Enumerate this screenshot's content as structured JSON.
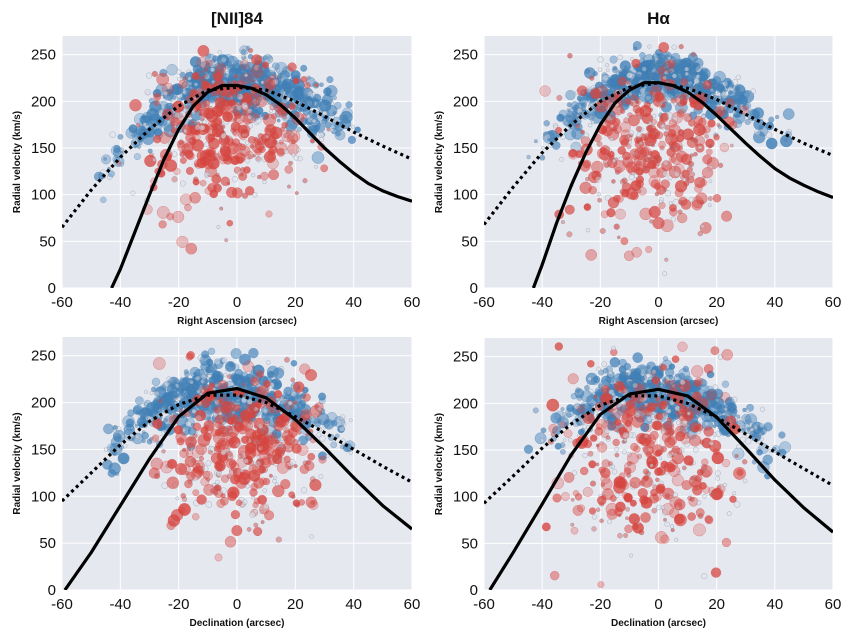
{
  "figure": {
    "background": "#ffffff",
    "plot_background": "#e6e8f0",
    "grid_color": "#ffffff",
    "curve_color": "#000000",
    "blue_color": "#3f7fb6",
    "red_color": "#d6453f"
  },
  "chart_data": [
    {
      "type": "scatter",
      "title": "[NII]84",
      "xlabel": "Right Ascension (arcsec)",
      "ylabel": "Radial velocity (km/s)",
      "xlim": [
        -60,
        60
      ],
      "ylim": [
        0,
        270
      ],
      "xticks": [
        "-60",
        "-40",
        "-20",
        "0",
        "20",
        "40",
        "60"
      ],
      "yticks": [
        "0",
        "50",
        "100",
        "150",
        "200",
        "250"
      ],
      "grid": true,
      "curves": {
        "solid": {
          "x": [
            -43,
            -40,
            -35,
            -30,
            -25,
            -20,
            -15,
            -10,
            -5,
            0,
            5,
            10,
            15,
            20,
            25,
            30,
            35,
            40,
            45,
            50,
            55,
            60
          ],
          "y": [
            0,
            20,
            60,
            100,
            138,
            170,
            195,
            210,
            217,
            217,
            214,
            207,
            196,
            182,
            166,
            150,
            136,
            123,
            112,
            104,
            98,
            93
          ]
        },
        "dotted": {
          "x": [
            -60,
            -50,
            -40,
            -30,
            -20,
            -10,
            0,
            10,
            20,
            30,
            40,
            50,
            60
          ],
          "y": [
            65,
            105,
            140,
            170,
            195,
            212,
            215,
            212,
            200,
            184,
            167,
            152,
            138
          ]
        }
      },
      "point_clouds": {
        "blue": {
          "x_range": [
            -48,
            42
          ],
          "center_x": 0,
          "center_y": 200,
          "spread_x": 20,
          "spread_y": 28
        },
        "red": {
          "x_range": [
            -42,
            35
          ],
          "center_x": -3,
          "center_y": 165,
          "spread_x": 14,
          "spread_y": 40
        }
      }
    },
    {
      "type": "scatter",
      "title": "Hα",
      "xlabel": "Right Ascension (arcsec)",
      "ylabel": "Radial velocity (km/s)",
      "xlim": [
        -60,
        60
      ],
      "ylim": [
        0,
        270
      ],
      "xticks": [
        "-60",
        "-40",
        "-20",
        "0",
        "20",
        "40",
        "60"
      ],
      "yticks": [
        "0",
        "50",
        "100",
        "150",
        "200",
        "250"
      ],
      "grid": true,
      "curves": {
        "solid": {
          "x": [
            -43,
            -40,
            -35,
            -30,
            -25,
            -20,
            -15,
            -10,
            -5,
            0,
            5,
            10,
            15,
            20,
            25,
            30,
            35,
            40,
            45,
            50,
            55,
            60
          ],
          "y": [
            0,
            25,
            70,
            110,
            145,
            175,
            198,
            212,
            220,
            220,
            217,
            210,
            199,
            185,
            170,
            155,
            141,
            128,
            118,
            110,
            103,
            97
          ]
        },
        "dotted": {
          "x": [
            -60,
            -50,
            -40,
            -30,
            -20,
            -10,
            0,
            10,
            20,
            30,
            40,
            50,
            60
          ],
          "y": [
            68,
            108,
            145,
            175,
            200,
            215,
            220,
            214,
            202,
            186,
            170,
            155,
            142
          ]
        }
      },
      "point_clouds": {
        "blue": {
          "x_range": [
            -45,
            45
          ],
          "center_x": 0,
          "center_y": 205,
          "spread_x": 18,
          "spread_y": 25
        },
        "red": {
          "x_range": [
            -40,
            35
          ],
          "center_x": -2,
          "center_y": 155,
          "spread_x": 14,
          "spread_y": 45
        }
      }
    },
    {
      "type": "scatter",
      "title": "",
      "xlabel": "Declination (arcsec)",
      "ylabel": "Radial velocity (km/s)",
      "xlim": [
        -60,
        60
      ],
      "ylim": [
        0,
        270
      ],
      "xticks": [
        "-60",
        "-40",
        "-20",
        "0",
        "20",
        "40",
        "60"
      ],
      "yticks": [
        "0",
        "50",
        "100",
        "150",
        "200",
        "250"
      ],
      "grid": true,
      "curves": {
        "solid": {
          "x": [
            -59,
            -50,
            -40,
            -30,
            -20,
            -10,
            0,
            10,
            20,
            30,
            40,
            50,
            60
          ],
          "y": [
            0,
            40,
            90,
            140,
            185,
            210,
            215,
            205,
            182,
            152,
            120,
            90,
            65
          ]
        },
        "dotted": {
          "x": [
            -60,
            -50,
            -40,
            -30,
            -20,
            -10,
            0,
            10,
            20,
            30,
            40,
            50,
            60
          ],
          "y": [
            95,
            125,
            155,
            180,
            198,
            208,
            208,
            200,
            185,
            168,
            150,
            132,
            115
          ]
        }
      },
      "point_clouds": {
        "blue": {
          "x_range": [
            -45,
            40
          ],
          "center_x": -5,
          "center_y": 200,
          "spread_x": 20,
          "spread_y": 28
        },
        "red": {
          "x_range": [
            -30,
            30
          ],
          "center_x": 0,
          "center_y": 155,
          "spread_x": 16,
          "spread_y": 40
        }
      }
    },
    {
      "type": "scatter",
      "title": "",
      "xlabel": "Declination (arcsec)",
      "ylabel": "Radial velocity (km/s)",
      "xlim": [
        -60,
        60
      ],
      "ylim": [
        0,
        270
      ],
      "xticks": [
        "-60",
        "-40",
        "-20",
        "0",
        "20",
        "40",
        "60"
      ],
      "yticks": [
        "0",
        "50",
        "100",
        "150",
        "200",
        "250"
      ],
      "grid": true,
      "curves": {
        "solid": {
          "x": [
            -58,
            -50,
            -40,
            -30,
            -20,
            -10,
            0,
            10,
            20,
            30,
            40,
            50,
            60
          ],
          "y": [
            0,
            40,
            92,
            145,
            188,
            210,
            215,
            208,
            185,
            152,
            118,
            88,
            62
          ]
        },
        "dotted": {
          "x": [
            -60,
            -50,
            -40,
            -30,
            -20,
            -10,
            0,
            10,
            20,
            30,
            40,
            50,
            60
          ],
          "y": [
            93,
            122,
            152,
            178,
            198,
            208,
            208,
            200,
            185,
            167,
            148,
            130,
            112
          ]
        }
      },
      "point_clouds": {
        "blue": {
          "x_range": [
            -45,
            45
          ],
          "center_x": 0,
          "center_y": 210,
          "spread_x": 18,
          "spread_y": 25
        },
        "red": {
          "x_range": [
            -40,
            30
          ],
          "center_x": 0,
          "center_y": 145,
          "spread_x": 16,
          "spread_y": 50
        }
      }
    }
  ]
}
